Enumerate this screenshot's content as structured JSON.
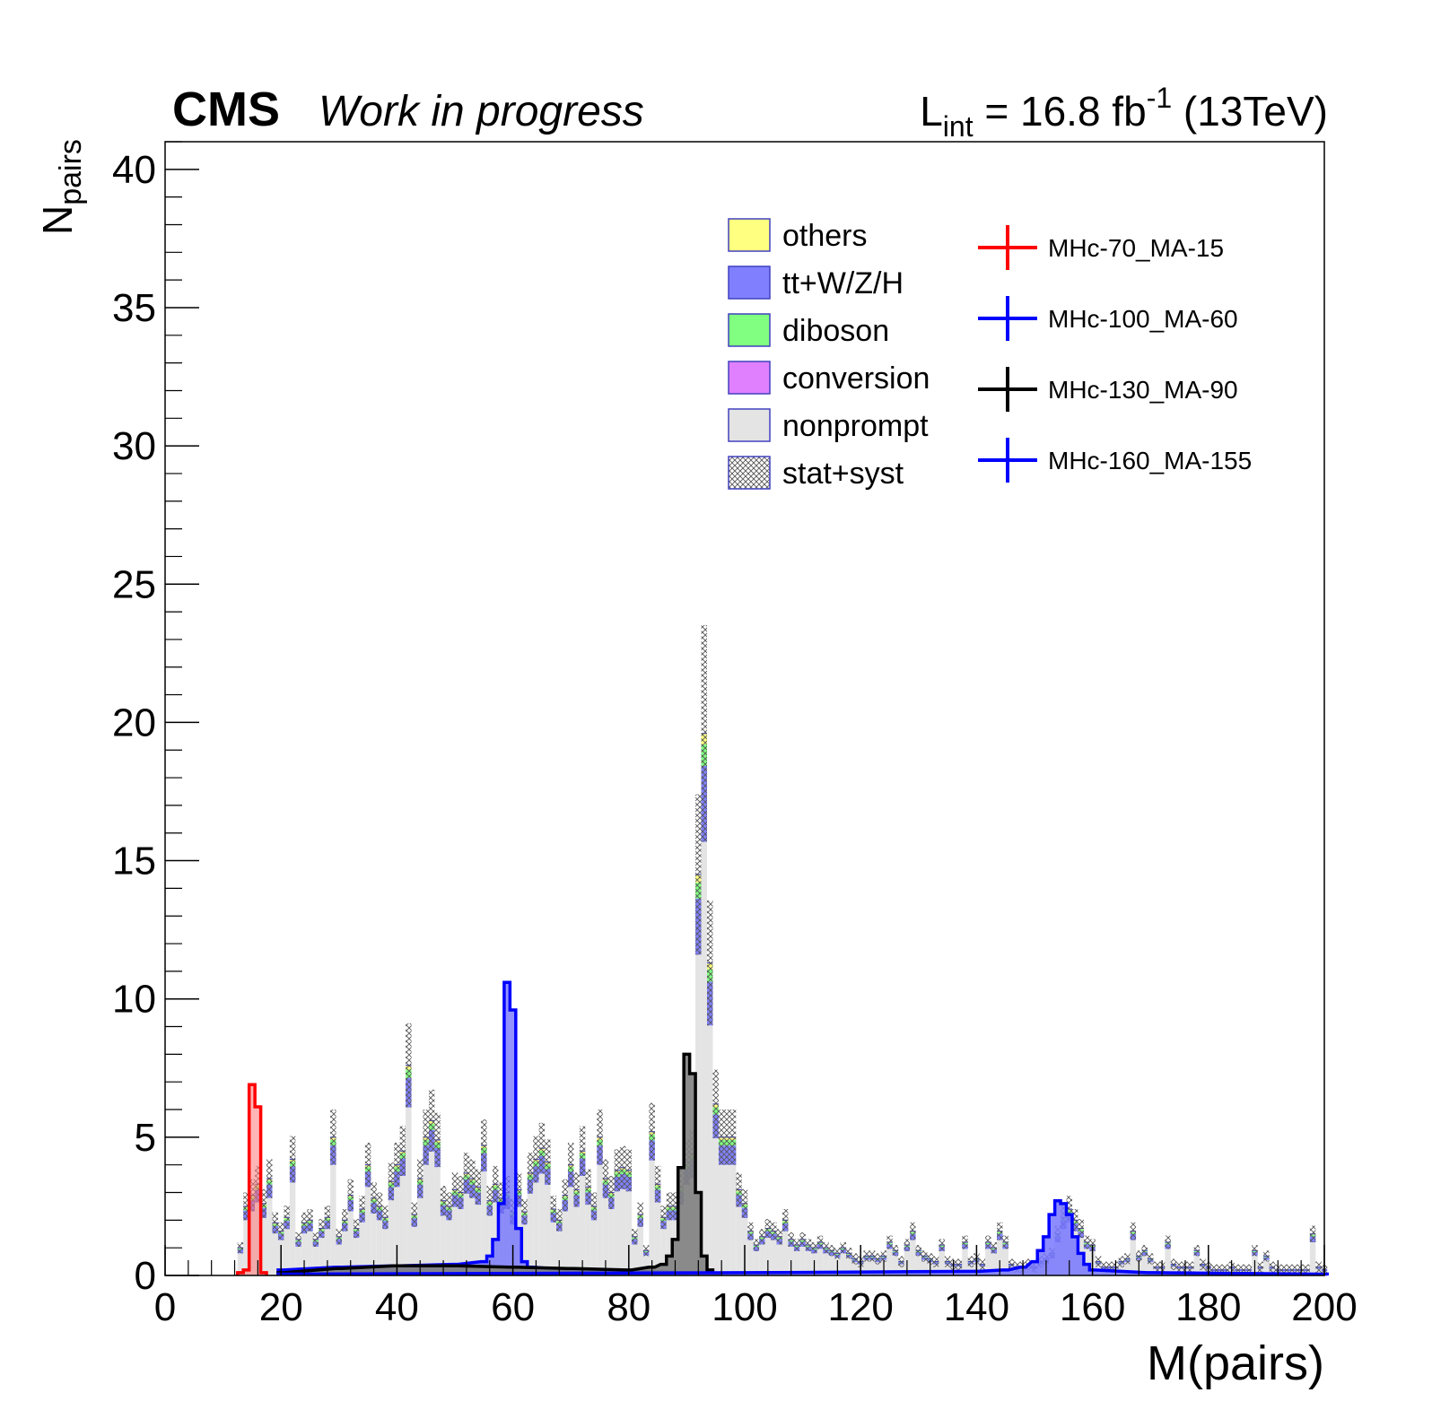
{
  "header": {
    "experiment": "CMS",
    "status": "Work in progress",
    "lumi_prefix": "L",
    "lumi_sub": "int",
    "lumi_value": " = 16.8 fb",
    "lumi_sup": "-1",
    "lumi_energy": " (13TeV)"
  },
  "chart_data": {
    "type": "bar",
    "xlabel": "M(pairs)",
    "ylabel_main": "N",
    "ylabel_sub": "pairs",
    "xlim": [
      0,
      200
    ],
    "ylim": [
      0,
      41
    ],
    "bin_width": 1,
    "x_ticks": [
      0,
      20,
      40,
      60,
      80,
      100,
      120,
      140,
      160,
      180,
      200
    ],
    "y_ticks": [
      0,
      5,
      10,
      15,
      20,
      25,
      30,
      35,
      40
    ],
    "grid": false,
    "legend_position": "top-right",
    "stack_legend": [
      {
        "name": "others",
        "color": "#ffff80"
      },
      {
        "name": "tt+W/Z/H",
        "color": "#8080ff"
      },
      {
        "name": "diboson",
        "color": "#80ff80"
      },
      {
        "name": "conversion",
        "color": "#e080ff"
      },
      {
        "name": "nonprompt",
        "color": "#e4e4e4"
      },
      {
        "name": "stat+syst",
        "color": "#ffffff"
      }
    ],
    "signal_legend": [
      {
        "name": "MHc-70_MA-15",
        "color": "#ff0000"
      },
      {
        "name": "MHc-100_MA-60",
        "color": "#0000ff"
      },
      {
        "name": "MHc-130_MA-90",
        "color": "#000000"
      },
      {
        "name": "MHc-160_MA-155",
        "color": "#0000ff"
      }
    ],
    "background_total": [
      {
        "x": 13,
        "y": 1.0
      },
      {
        "x": 14,
        "y": 2.5
      },
      {
        "x": 15,
        "y": 2.9
      },
      {
        "x": 16,
        "y": 3.3
      },
      {
        "x": 17,
        "y": 2.6
      },
      {
        "x": 18,
        "y": 3.5
      },
      {
        "x": 19,
        "y": 1.9
      },
      {
        "x": 20,
        "y": 1.6
      },
      {
        "x": 21,
        "y": 2.1
      },
      {
        "x": 22,
        "y": 4.2
      },
      {
        "x": 23,
        "y": 1.3
      },
      {
        "x": 24,
        "y": 1.9
      },
      {
        "x": 25,
        "y": 2.0
      },
      {
        "x": 26,
        "y": 1.3
      },
      {
        "x": 27,
        "y": 1.7
      },
      {
        "x": 28,
        "y": 2.1
      },
      {
        "x": 29,
        "y": 5.0
      },
      {
        "x": 30,
        "y": 1.4
      },
      {
        "x": 31,
        "y": 2.0
      },
      {
        "x": 32,
        "y": 2.9
      },
      {
        "x": 33,
        "y": 1.7
      },
      {
        "x": 34,
        "y": 2.4
      },
      {
        "x": 35,
        "y": 4.0
      },
      {
        "x": 36,
        "y": 2.8
      },
      {
        "x": 37,
        "y": 2.5
      },
      {
        "x": 38,
        "y": 2.1
      },
      {
        "x": 39,
        "y": 3.4
      },
      {
        "x": 40,
        "y": 4.0
      },
      {
        "x": 41,
        "y": 4.5
      },
      {
        "x": 42,
        "y": 7.6
      },
      {
        "x": 43,
        "y": 2.2
      },
      {
        "x": 44,
        "y": 3.5
      },
      {
        "x": 45,
        "y": 5.0
      },
      {
        "x": 46,
        "y": 5.6
      },
      {
        "x": 47,
        "y": 4.9
      },
      {
        "x": 48,
        "y": 2.7
      },
      {
        "x": 49,
        "y": 2.5
      },
      {
        "x": 50,
        "y": 3.1
      },
      {
        "x": 51,
        "y": 3.0
      },
      {
        "x": 52,
        "y": 3.7
      },
      {
        "x": 53,
        "y": 3.5
      },
      {
        "x": 54,
        "y": 3.2
      },
      {
        "x": 55,
        "y": 4.7
      },
      {
        "x": 56,
        "y": 2.7
      },
      {
        "x": 57,
        "y": 3.3
      },
      {
        "x": 58,
        "y": 2.8
      },
      {
        "x": 59,
        "y": 3.0
      },
      {
        "x": 60,
        "y": 2.3
      },
      {
        "x": 61,
        "y": 3.1
      },
      {
        "x": 62,
        "y": 2.3
      },
      {
        "x": 63,
        "y": 3.7
      },
      {
        "x": 64,
        "y": 4.2
      },
      {
        "x": 65,
        "y": 4.6
      },
      {
        "x": 66,
        "y": 4.1
      },
      {
        "x": 67,
        "y": 2.4
      },
      {
        "x": 68,
        "y": 2.0
      },
      {
        "x": 69,
        "y": 2.9
      },
      {
        "x": 70,
        "y": 4.0
      },
      {
        "x": 71,
        "y": 3.1
      },
      {
        "x": 72,
        "y": 4.5
      },
      {
        "x": 73,
        "y": 3.2
      },
      {
        "x": 74,
        "y": 2.5
      },
      {
        "x": 75,
        "y": 5.0
      },
      {
        "x": 76,
        "y": 3.5
      },
      {
        "x": 77,
        "y": 3.0
      },
      {
        "x": 78,
        "y": 3.8
      },
      {
        "x": 79,
        "y": 3.9
      },
      {
        "x": 80,
        "y": 3.8
      },
      {
        "x": 81,
        "y": 1.4
      },
      {
        "x": 82,
        "y": 2.2
      },
      {
        "x": 83,
        "y": 0.9
      },
      {
        "x": 84,
        "y": 5.2
      },
      {
        "x": 85,
        "y": 3.3
      },
      {
        "x": 86,
        "y": 2.1
      },
      {
        "x": 87,
        "y": 2.5
      },
      {
        "x": 88,
        "y": 2.5
      },
      {
        "x": 89,
        "y": 3.2
      },
      {
        "x": 90,
        "y": 4.1
      },
      {
        "x": 91,
        "y": 4.4
      },
      {
        "x": 92,
        "y": 14.5
      },
      {
        "x": 93,
        "y": 19.6
      },
      {
        "x": 94,
        "y": 11.3
      },
      {
        "x": 95,
        "y": 6.2
      },
      {
        "x": 96,
        "y": 5.0
      },
      {
        "x": 97,
        "y": 5.0
      },
      {
        "x": 98,
        "y": 5.0
      },
      {
        "x": 99,
        "y": 3.1
      },
      {
        "x": 100,
        "y": 2.6
      },
      {
        "x": 101,
        "y": 1.6
      },
      {
        "x": 102,
        "y": 1.1
      },
      {
        "x": 103,
        "y": 1.4
      },
      {
        "x": 104,
        "y": 1.7
      },
      {
        "x": 105,
        "y": 1.6
      },
      {
        "x": 106,
        "y": 1.4
      },
      {
        "x": 107,
        "y": 2.0
      },
      {
        "x": 108,
        "y": 1.3
      },
      {
        "x": 109,
        "y": 1.1
      },
      {
        "x": 110,
        "y": 1.3
      },
      {
        "x": 111,
        "y": 1.1
      },
      {
        "x": 112,
        "y": 1.0
      },
      {
        "x": 113,
        "y": 1.2
      },
      {
        "x": 114,
        "y": 1.0
      },
      {
        "x": 115,
        "y": 0.9
      },
      {
        "x": 116,
        "y": 0.8
      },
      {
        "x": 117,
        "y": 1.0
      },
      {
        "x": 118,
        "y": 0.8
      },
      {
        "x": 119,
        "y": 0.6
      },
      {
        "x": 120,
        "y": 0.5
      },
      {
        "x": 121,
        "y": 0.7
      },
      {
        "x": 122,
        "y": 0.7
      },
      {
        "x": 123,
        "y": 0.6
      },
      {
        "x": 124,
        "y": 0.7
      },
      {
        "x": 125,
        "y": 1.2
      },
      {
        "x": 126,
        "y": 0.9
      },
      {
        "x": 127,
        "y": 0.5
      },
      {
        "x": 128,
        "y": 1.1
      },
      {
        "x": 129,
        "y": 1.6
      },
      {
        "x": 130,
        "y": 0.9
      },
      {
        "x": 131,
        "y": 0.7
      },
      {
        "x": 132,
        "y": 0.6
      },
      {
        "x": 133,
        "y": 0.5
      },
      {
        "x": 134,
        "y": 1.1
      },
      {
        "x": 135,
        "y": 0.5
      },
      {
        "x": 136,
        "y": 0.4
      },
      {
        "x": 137,
        "y": 0.4
      },
      {
        "x": 138,
        "y": 1.2
      },
      {
        "x": 139,
        "y": 0.5
      },
      {
        "x": 140,
        "y": 0.6
      },
      {
        "x": 141,
        "y": 0.4
      },
      {
        "x": 142,
        "y": 1.2
      },
      {
        "x": 143,
        "y": 1.0
      },
      {
        "x": 144,
        "y": 1.6
      },
      {
        "x": 145,
        "y": 1.2
      },
      {
        "x": 146,
        "y": 0.4
      },
      {
        "x": 147,
        "y": 0.3
      },
      {
        "x": 148,
        "y": 0.3
      },
      {
        "x": 149,
        "y": 0.4
      },
      {
        "x": 150,
        "y": 0.3
      },
      {
        "x": 151,
        "y": 0.5
      },
      {
        "x": 152,
        "y": 0.6
      },
      {
        "x": 153,
        "y": 0.8
      },
      {
        "x": 154,
        "y": 1.5
      },
      {
        "x": 155,
        "y": 2.1
      },
      {
        "x": 156,
        "y": 2.4
      },
      {
        "x": 157,
        "y": 2.0
      },
      {
        "x": 158,
        "y": 1.7
      },
      {
        "x": 159,
        "y": 1.2
      },
      {
        "x": 160,
        "y": 1.1
      },
      {
        "x": 161,
        "y": 0.5
      },
      {
        "x": 162,
        "y": 0.3
      },
      {
        "x": 163,
        "y": 0.3
      },
      {
        "x": 164,
        "y": 0.3
      },
      {
        "x": 165,
        "y": 0.5
      },
      {
        "x": 166,
        "y": 0.6
      },
      {
        "x": 167,
        "y": 1.6
      },
      {
        "x": 168,
        "y": 0.7
      },
      {
        "x": 169,
        "y": 0.9
      },
      {
        "x": 170,
        "y": 0.6
      },
      {
        "x": 171,
        "y": 0.3
      },
      {
        "x": 172,
        "y": 0.3
      },
      {
        "x": 173,
        "y": 1.2
      },
      {
        "x": 174,
        "y": 0.4
      },
      {
        "x": 175,
        "y": 0.3
      },
      {
        "x": 176,
        "y": 0.3
      },
      {
        "x": 177,
        "y": 0.3
      },
      {
        "x": 178,
        "y": 0.9
      },
      {
        "x": 179,
        "y": 0.4
      },
      {
        "x": 180,
        "y": 0.3
      },
      {
        "x": 181,
        "y": 0.2
      },
      {
        "x": 182,
        "y": 0.2
      },
      {
        "x": 183,
        "y": 0.2
      },
      {
        "x": 184,
        "y": 0.3
      },
      {
        "x": 185,
        "y": 0.2
      },
      {
        "x": 186,
        "y": 0.2
      },
      {
        "x": 187,
        "y": 0.2
      },
      {
        "x": 188,
        "y": 0.9
      },
      {
        "x": 189,
        "y": 0.3
      },
      {
        "x": 190,
        "y": 0.7
      },
      {
        "x": 191,
        "y": 0.3
      },
      {
        "x": 192,
        "y": 0.2
      },
      {
        "x": 193,
        "y": 0.2
      },
      {
        "x": 194,
        "y": 0.2
      },
      {
        "x": 195,
        "y": 0.2
      },
      {
        "x": 196,
        "y": 0.2
      },
      {
        "x": 197,
        "y": 0.2
      },
      {
        "x": 198,
        "y": 1.5
      },
      {
        "x": 199,
        "y": 0.3
      },
      {
        "x": 200,
        "y": 0.2
      }
    ],
    "series": [
      {
        "name": "MHc-70_MA-15",
        "color": "#ff0000",
        "points": [
          {
            "x": 13,
            "y": 0.1
          },
          {
            "x": 14,
            "y": 0.2
          },
          {
            "x": 15,
            "y": 6.9
          },
          {
            "x": 16,
            "y": 6.1
          },
          {
            "x": 17,
            "y": 0.1
          }
        ]
      },
      {
        "name": "MHc-100_MA-60",
        "color": "#0000ff",
        "points": [
          {
            "x": 20,
            "y": 0.2
          },
          {
            "x": 30,
            "y": 0.3
          },
          {
            "x": 40,
            "y": 0.35
          },
          {
            "x": 50,
            "y": 0.4
          },
          {
            "x": 55,
            "y": 0.5
          },
          {
            "x": 56,
            "y": 0.7
          },
          {
            "x": 57,
            "y": 1.3
          },
          {
            "x": 58,
            "y": 2.6
          },
          {
            "x": 59,
            "y": 10.6
          },
          {
            "x": 60,
            "y": 9.6
          },
          {
            "x": 61,
            "y": 1.7
          },
          {
            "x": 62,
            "y": 0.5
          },
          {
            "x": 63,
            "y": 0.3
          },
          {
            "x": 70,
            "y": 0.2
          },
          {
            "x": 80,
            "y": 0.15
          },
          {
            "x": 90,
            "y": 0.1
          }
        ]
      },
      {
        "name": "MHc-130_MA-90",
        "color": "#000000",
        "points": [
          {
            "x": 20,
            "y": 0.1
          },
          {
            "x": 30,
            "y": 0.25
          },
          {
            "x": 40,
            "y": 0.35
          },
          {
            "x": 50,
            "y": 0.35
          },
          {
            "x": 60,
            "y": 0.3
          },
          {
            "x": 70,
            "y": 0.25
          },
          {
            "x": 80,
            "y": 0.2
          },
          {
            "x": 84,
            "y": 0.3
          },
          {
            "x": 86,
            "y": 0.4
          },
          {
            "x": 87,
            "y": 0.7
          },
          {
            "x": 88,
            "y": 1.3
          },
          {
            "x": 89,
            "y": 3.9
          },
          {
            "x": 90,
            "y": 8.0
          },
          {
            "x": 91,
            "y": 7.3
          },
          {
            "x": 92,
            "y": 3.0
          },
          {
            "x": 93,
            "y": 0.7
          },
          {
            "x": 94,
            "y": 0.2
          },
          {
            "x": 95,
            "y": 0.05
          }
        ]
      },
      {
        "name": "MHc-160_MA-155",
        "color": "#0000ff",
        "points": [
          {
            "x": 20,
            "y": 0.05
          },
          {
            "x": 100,
            "y": 0.1
          },
          {
            "x": 140,
            "y": 0.15
          },
          {
            "x": 145,
            "y": 0.2
          },
          {
            "x": 148,
            "y": 0.3
          },
          {
            "x": 150,
            "y": 0.5
          },
          {
            "x": 151,
            "y": 0.9
          },
          {
            "x": 152,
            "y": 1.4
          },
          {
            "x": 153,
            "y": 2.2
          },
          {
            "x": 154,
            "y": 2.7
          },
          {
            "x": 155,
            "y": 2.6
          },
          {
            "x": 156,
            "y": 2.2
          },
          {
            "x": 157,
            "y": 1.4
          },
          {
            "x": 158,
            "y": 0.8
          },
          {
            "x": 159,
            "y": 0.4
          },
          {
            "x": 160,
            "y": 0.2
          },
          {
            "x": 170,
            "y": 0.1
          },
          {
            "x": 200,
            "y": 0.05
          }
        ]
      }
    ]
  }
}
